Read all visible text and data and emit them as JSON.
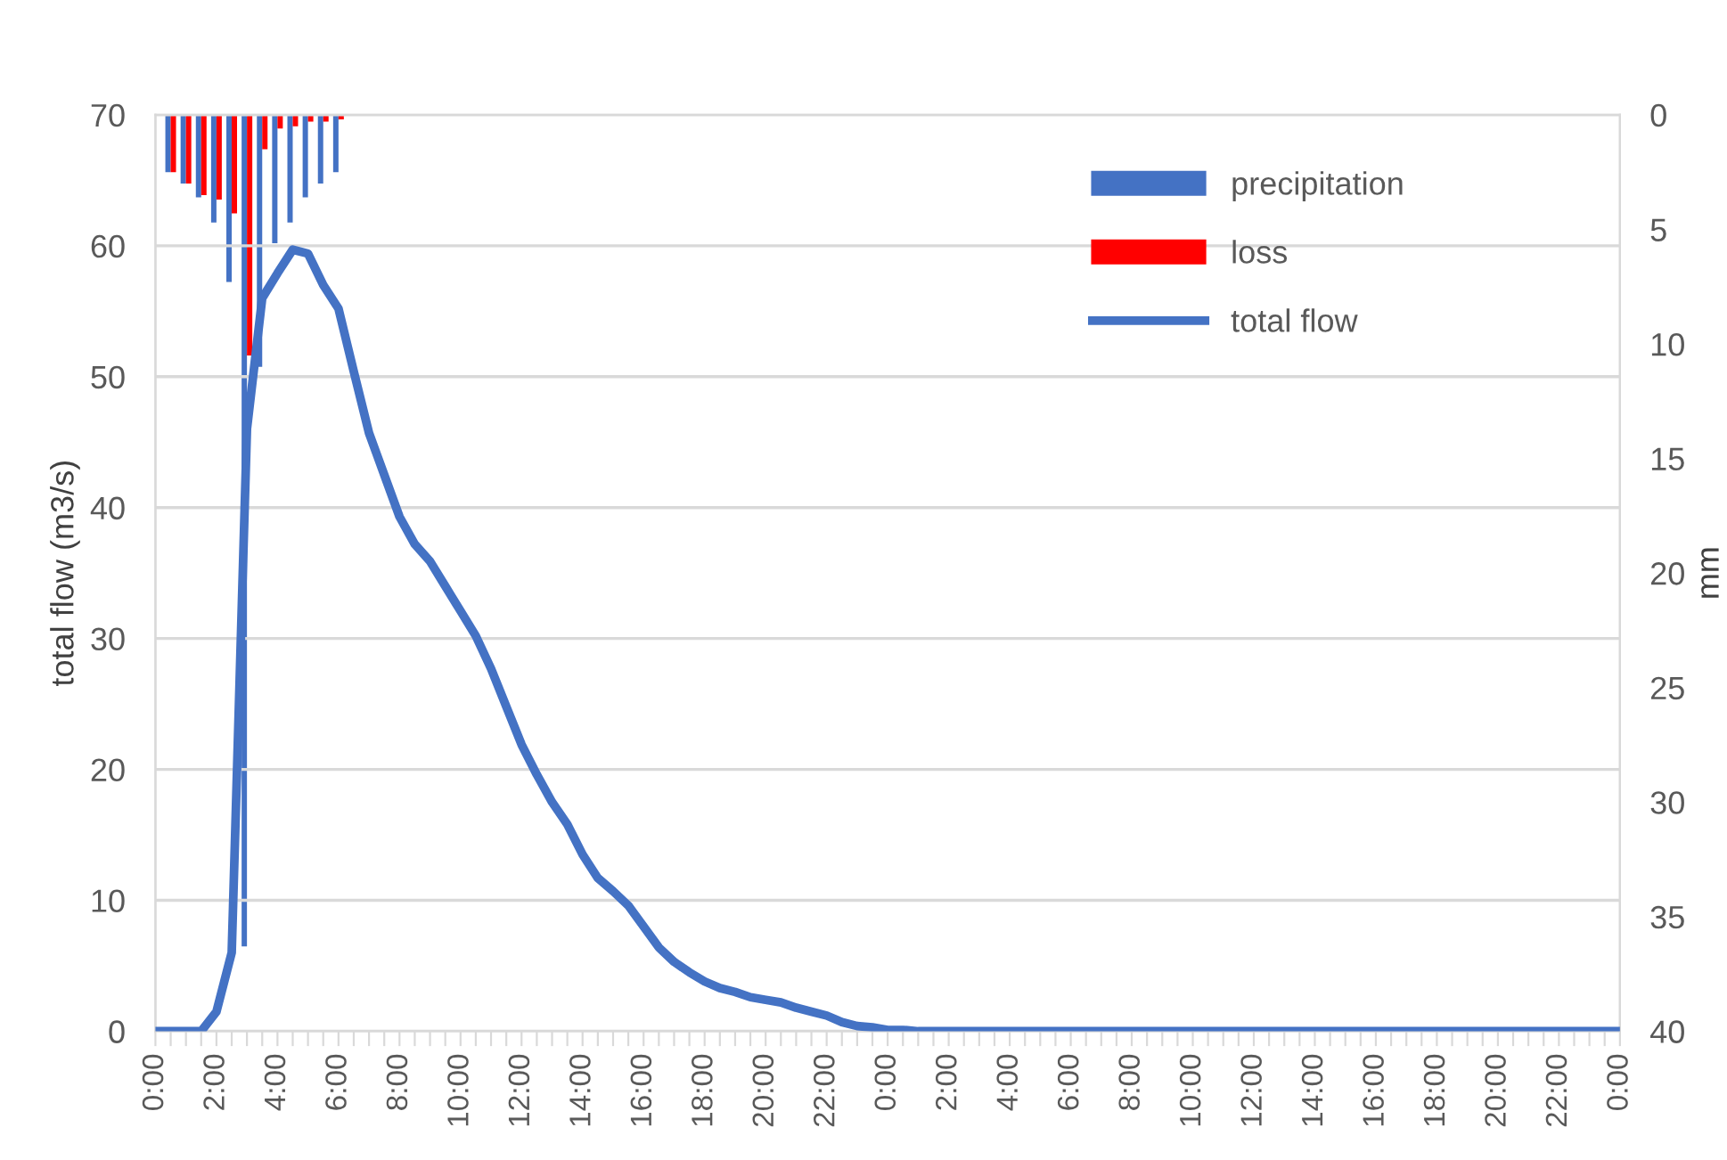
{
  "chart_data": {
    "type": "line",
    "ylabel": "total flow (m3/s)",
    "y2label": "mm",
    "categories": [
      "0:00",
      null,
      null,
      null,
      "2:00",
      null,
      null,
      null,
      "4:00",
      null,
      null,
      null,
      "6:00",
      null,
      null,
      null,
      "8:00",
      null,
      null,
      null,
      "10:00",
      null,
      null,
      null,
      "12:00",
      null,
      null,
      null,
      "14:00",
      null,
      null,
      null,
      "16:00",
      null,
      null,
      null,
      "18:00",
      null,
      null,
      null,
      "20:00",
      null,
      null,
      null,
      "22:00",
      null,
      null,
      null,
      "0:00",
      null,
      null,
      null,
      "2:00",
      null,
      null,
      null,
      "4:00",
      null,
      null,
      null,
      "6:00",
      null,
      null,
      null,
      "8:00",
      null,
      null,
      null,
      "10:00",
      null,
      null,
      null,
      "12:00",
      null,
      null,
      null,
      "14:00",
      null,
      null,
      null,
      "16:00",
      null,
      null,
      null,
      "18:00",
      null,
      null,
      null,
      "20:00",
      null,
      null,
      null,
      "22:00",
      null,
      null,
      null,
      "0:00"
    ],
    "series": [
      {
        "name": "precipitation",
        "type": "bar",
        "axis": "y2",
        "color": "#4472c4",
        "values": [
          null,
          2.5,
          3.0,
          3.6,
          4.7,
          7.3,
          36.3,
          11.0,
          5.6,
          4.7,
          3.6,
          3.0,
          2.5,
          null,
          null,
          null,
          null,
          null,
          null,
          null,
          null,
          null,
          null,
          null,
          null,
          null,
          null,
          null,
          null,
          null,
          null,
          null,
          null,
          null,
          null,
          null,
          null,
          null,
          null,
          null,
          null,
          null,
          null,
          null,
          null,
          null,
          null,
          null,
          null,
          null,
          null,
          null,
          null,
          null,
          null,
          null,
          null,
          null,
          null,
          null,
          null,
          null,
          null,
          null,
          null,
          null,
          null,
          null,
          null,
          null,
          null,
          null,
          null,
          null,
          null,
          null,
          null,
          null,
          null,
          null,
          null,
          null,
          null,
          null,
          null,
          null,
          null,
          null,
          null,
          null,
          null,
          null,
          null,
          null,
          null,
          null,
          null
        ]
      },
      {
        "name": "loss",
        "type": "bar",
        "axis": "y2",
        "color": "#ff0000",
        "values": [
          null,
          2.5,
          3.0,
          3.5,
          3.7,
          4.3,
          10.5,
          1.5,
          0.6,
          0.5,
          0.3,
          0.3,
          0.2,
          null,
          null,
          null,
          null,
          null,
          null,
          null,
          null,
          null,
          null,
          null,
          null,
          null,
          null,
          null,
          null,
          null,
          null,
          null,
          null,
          null,
          null,
          null,
          null,
          null,
          null,
          null,
          null,
          null,
          null,
          null,
          null,
          null,
          null,
          null,
          null,
          null,
          null,
          null,
          null,
          null,
          null,
          null,
          null,
          null,
          null,
          null,
          null,
          null,
          null,
          null,
          null,
          null,
          null,
          null,
          null,
          null,
          null,
          null,
          null,
          null,
          null,
          null,
          null,
          null,
          null,
          null,
          null,
          null,
          null,
          null,
          null,
          null,
          null,
          null,
          null,
          null,
          null,
          null,
          null,
          null,
          null,
          null,
          null
        ]
      },
      {
        "name": "total flow",
        "color": "#4472c4",
        "values": [
          0,
          0,
          0,
          0,
          1.5,
          6.0,
          46,
          56,
          57.9,
          59.7,
          59.4,
          57,
          55.2,
          50.4,
          45.7,
          42.5,
          39.3,
          37.2,
          35.9,
          34,
          32.1,
          30.2,
          27.7,
          24.8,
          21.9,
          19.6,
          17.5,
          15.8,
          13.5,
          11.7,
          10.7,
          9.6,
          8.0,
          6.4,
          5.3,
          4.5,
          3.8,
          3.3,
          3.0,
          2.6,
          2.4,
          2.2,
          1.8,
          1.5,
          1.2,
          0.7,
          0.4,
          0.3,
          0.1,
          0.1,
          0,
          0,
          0,
          0,
          0,
          0,
          0,
          0,
          0,
          0,
          0,
          0,
          0,
          0,
          0,
          0,
          0,
          0,
          0,
          0,
          0,
          0,
          0,
          0,
          0,
          0,
          0,
          0,
          0,
          0,
          0,
          0,
          0,
          0,
          0,
          0,
          0,
          0,
          0,
          0,
          0,
          0,
          0,
          0,
          0,
          0,
          0
        ]
      }
    ],
    "ylim": [
      0,
      70
    ],
    "yticks": [
      0,
      10,
      20,
      30,
      40,
      50,
      60,
      70
    ],
    "y2lim": [
      40,
      0
    ],
    "y2ticks": [
      0,
      5,
      10,
      15,
      20,
      25,
      30,
      35,
      40
    ],
    "grid": "y",
    "legend": "top right"
  }
}
